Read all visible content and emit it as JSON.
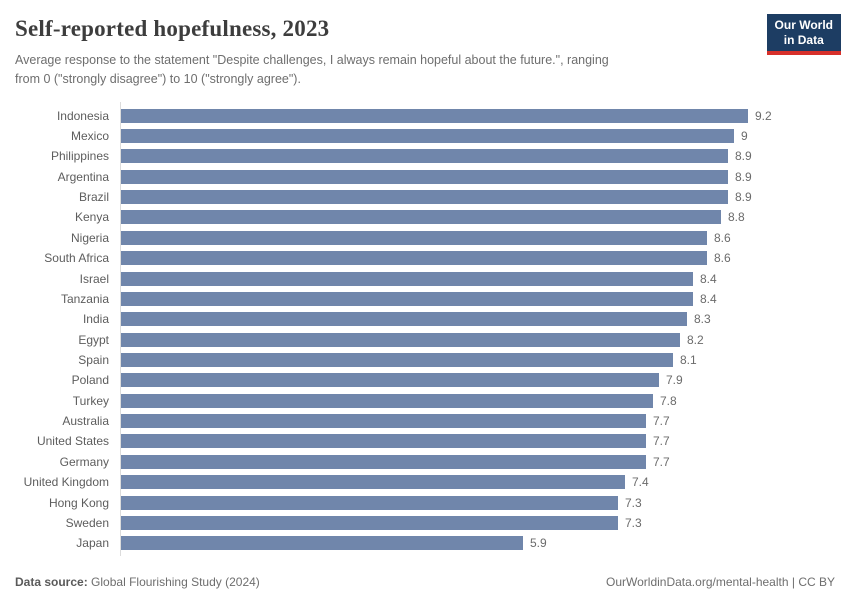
{
  "header": {
    "title": "Self-reported hopefulness, 2023",
    "subtitle": "Average response to the statement \"Despite challenges, I always remain hopeful about the future.\", ranging\nfrom 0 (\"strongly disagree\") to 10 (\"strongly agree\").",
    "logo": {
      "line1": "Our World",
      "line2": "in Data",
      "bg_color": "#1d3d63",
      "accent_color": "#d7302a",
      "text_color": "#ffffff"
    }
  },
  "chart_data": {
    "type": "bar",
    "orientation": "horizontal",
    "title": "Self-reported hopefulness, 2023",
    "xlabel": "",
    "ylabel": "",
    "xlim": [
      0,
      9.2
    ],
    "grid": false,
    "legend": "none",
    "bar_color": "#7086ab",
    "axis_line_color": "#dcdcdc",
    "categories": [
      "Indonesia",
      "Mexico",
      "Philippines",
      "Argentina",
      "Brazil",
      "Kenya",
      "Nigeria",
      "South Africa",
      "Israel",
      "Tanzania",
      "India",
      "Egypt",
      "Spain",
      "Poland",
      "Turkey",
      "Australia",
      "United States",
      "Germany",
      "United Kingdom",
      "Hong Kong",
      "Sweden",
      "Japan"
    ],
    "values": [
      9.2,
      9,
      8.9,
      8.9,
      8.9,
      8.8,
      8.6,
      8.6,
      8.4,
      8.4,
      8.3,
      8.2,
      8.1,
      7.9,
      7.8,
      7.7,
      7.7,
      7.7,
      7.4,
      7.3,
      7.3,
      5.9
    ],
    "value_labels": [
      "9.2",
      "9",
      "8.9",
      "8.9",
      "8.9",
      "8.8",
      "8.6",
      "8.6",
      "8.4",
      "8.4",
      "8.3",
      "8.2",
      "8.1",
      "7.9",
      "7.8",
      "7.7",
      "7.7",
      "7.7",
      "7.4",
      "7.3",
      "7.3",
      "5.9"
    ]
  },
  "footer": {
    "datasource_label": "Data source:",
    "datasource_value": "Global Flourishing Study (2024)",
    "attribution": "OurWorldinData.org/mental-health | CC BY"
  }
}
